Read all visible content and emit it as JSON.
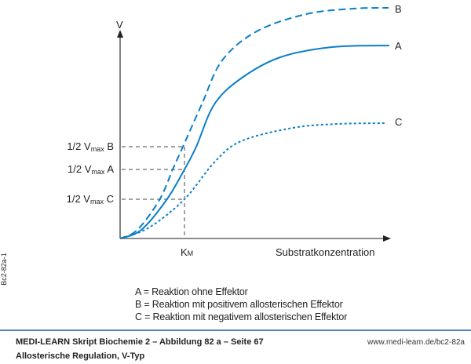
{
  "diagram": {
    "y_axis_label": "V",
    "x_axis_label": "Substratkonzentration",
    "km_label": {
      "main": "K",
      "sub": "M"
    },
    "half_vmax_labels": [
      {
        "prefix": "1/2 V",
        "sub": "max",
        "curve": "B"
      },
      {
        "prefix": "1/2 V",
        "sub": "max",
        "curve": "A"
      },
      {
        "prefix": "1/2 V",
        "sub": "max",
        "curve": "C"
      }
    ],
    "curves": [
      {
        "name": "B",
        "style": "dashed"
      },
      {
        "name": "A",
        "style": "solid"
      },
      {
        "name": "C",
        "style": "dotted"
      }
    ],
    "curve_color": "#0a7fc9",
    "axis_color": "#666666"
  },
  "legend": [
    "A = Reaktion ohne Effektor",
    "B = Reaktion mit positivem allosterischen Effektor",
    "C = Reaktion mit negativem allosterischen Effektor"
  ],
  "side_code": "Bc2-82a-1",
  "footer": {
    "source": "MEDI-LEARN Skript Biochemie 2 – Abbildung 82 a – Seite 67",
    "url": "www.medi-learn.de/bc2-82a",
    "title": "Allosterische Regulation, V-Typ",
    "rule_color": "#1a5ea8"
  }
}
